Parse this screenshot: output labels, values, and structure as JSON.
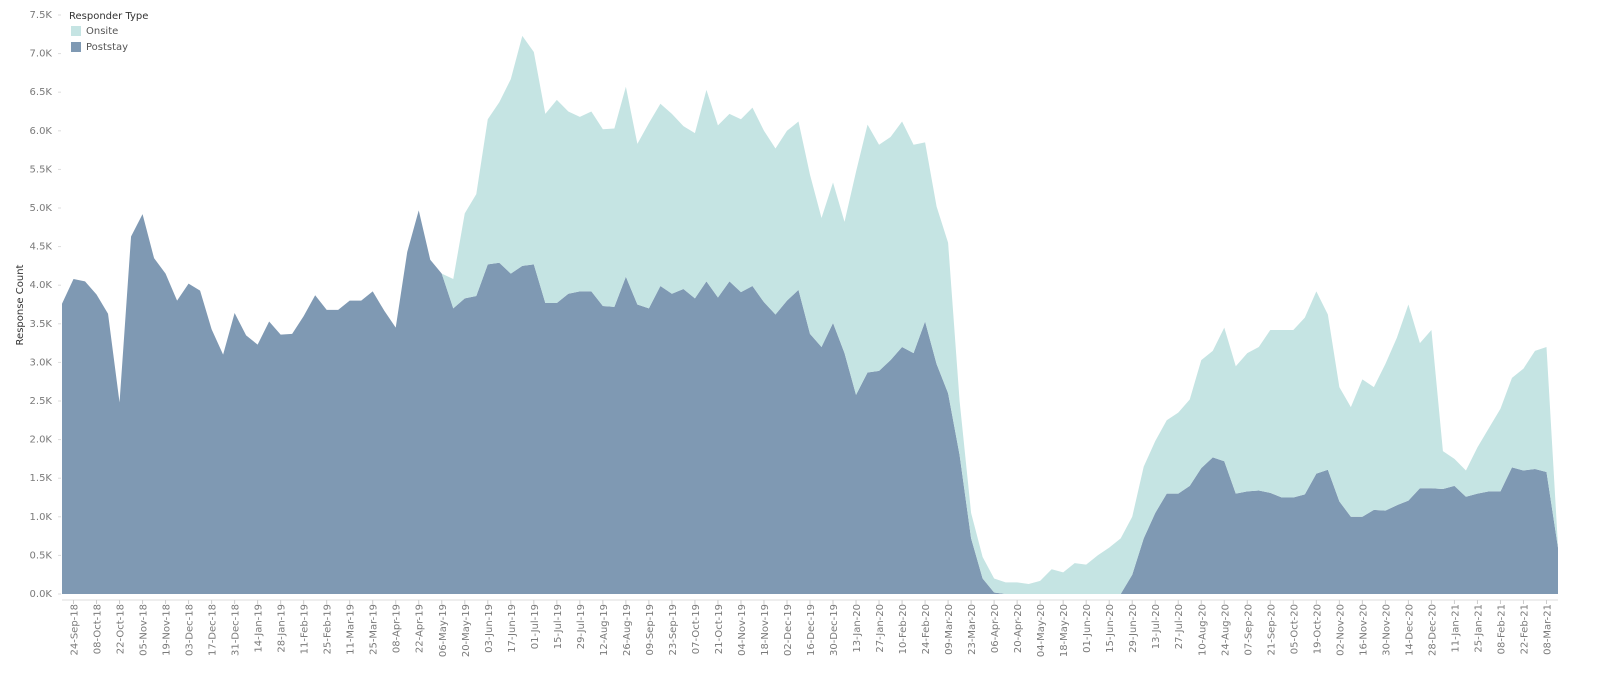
{
  "chart_data": {
    "type": "stacked-area",
    "y_label": "Response Count",
    "legend_title": "Responder Type",
    "legend_position": "top-left",
    "grid": false,
    "ylim": [
      0,
      7500
    ],
    "yticks": [
      {
        "value": 0,
        "label": "0.0K"
      },
      {
        "value": 500,
        "label": "0.5K"
      },
      {
        "value": 1000,
        "label": "1.0K"
      },
      {
        "value": 1500,
        "label": "1.5K"
      },
      {
        "value": 2000,
        "label": "2.0K"
      },
      {
        "value": 2500,
        "label": "2.5K"
      },
      {
        "value": 3000,
        "label": "3.0K"
      },
      {
        "value": 3500,
        "label": "3.5K"
      },
      {
        "value": 4000,
        "label": "4.0K"
      },
      {
        "value": 4500,
        "label": "4.5K"
      },
      {
        "value": 5000,
        "label": "5.0K"
      },
      {
        "value": 5500,
        "label": "5.5K"
      },
      {
        "value": 6000,
        "label": "6.0K"
      },
      {
        "value": 6500,
        "label": "6.5K"
      },
      {
        "value": 7000,
        "label": "7.0K"
      },
      {
        "value": 7500,
        "label": "7.5K"
      }
    ],
    "categories": [
      null,
      "24-Sep-18",
      null,
      "08-Oct-18",
      null,
      "22-Oct-18",
      null,
      "05-Nov-18",
      null,
      "19-Nov-18",
      null,
      "03-Dec-18",
      null,
      "17-Dec-18",
      null,
      "31-Dec-18",
      null,
      "14-Jan-19",
      null,
      "28-Jan-19",
      null,
      "11-Feb-19",
      null,
      "25-Feb-19",
      null,
      "11-Mar-19",
      null,
      "25-Mar-19",
      null,
      "08-Apr-19",
      null,
      "22-Apr-19",
      null,
      "06-May-19",
      null,
      "20-May-19",
      null,
      "03-Jun-19",
      null,
      "17-Jun-19",
      null,
      "01-Jul-19",
      null,
      "15-Jul-19",
      null,
      "29-Jul-19",
      null,
      "12-Aug-19",
      null,
      "26-Aug-19",
      null,
      "09-Sep-19",
      null,
      "23-Sep-19",
      null,
      "07-Oct-19",
      null,
      "21-Oct-19",
      null,
      "04-Nov-19",
      null,
      "18-Nov-19",
      null,
      "02-Dec-19",
      null,
      "16-Dec-19",
      null,
      "30-Dec-19",
      null,
      "13-Jan-20",
      null,
      "27-Jan-20",
      null,
      "10-Feb-20",
      null,
      "24-Feb-20",
      null,
      "09-Mar-20",
      null,
      "23-Mar-20",
      null,
      "06-Apr-20",
      null,
      "20-Apr-20",
      null,
      "04-May-20",
      null,
      "18-May-20",
      null,
      "01-Jun-20",
      null,
      "15-Jun-20",
      null,
      "29-Jun-20",
      null,
      "13-Jul-20",
      null,
      "27-Jul-20",
      null,
      "10-Aug-20",
      null,
      "24-Aug-20",
      null,
      "07-Sep-20",
      null,
      "21-Sep-20",
      null,
      "05-Oct-20",
      null,
      "19-Oct-20",
      null,
      "02-Nov-20",
      null,
      "16-Nov-20",
      null,
      "30-Nov-20",
      null,
      "14-Dec-20",
      null,
      "28-Dec-20",
      null,
      "11-Jan-21",
      null,
      "25-Jan-21",
      null,
      "08-Feb-21",
      null,
      "22-Feb-21",
      null,
      "08-Mar-21",
      null
    ],
    "series": [
      {
        "name": "Poststay",
        "color": "#7f99b3",
        "values": [
          3760,
          4080,
          4050,
          3880,
          3630,
          2480,
          4630,
          4920,
          4350,
          4150,
          3800,
          4020,
          3930,
          3430,
          3100,
          3640,
          3350,
          3230,
          3530,
          3360,
          3370,
          3600,
          3870,
          3680,
          3680,
          3800,
          3800,
          3920,
          3670,
          3450,
          4430,
          4970,
          4330,
          4150,
          3700,
          3830,
          3860,
          4270,
          4290,
          4150,
          4250,
          4270,
          3770,
          3770,
          3890,
          3920,
          3920,
          3730,
          3720,
          4110,
          3750,
          3700,
          3990,
          3890,
          3950,
          3830,
          4050,
          3840,
          4050,
          3910,
          3990,
          3780,
          3620,
          3800,
          3940,
          3370,
          3200,
          3510,
          3120,
          2580,
          2870,
          2890,
          3030,
          3200,
          3120,
          3530,
          2980,
          2600,
          1800,
          720,
          200,
          20,
          0,
          0,
          0,
          0,
          0,
          0,
          0,
          0,
          0,
          0,
          0,
          250,
          720,
          1050,
          1300,
          1300,
          1400,
          1630,
          1770,
          1720,
          1300,
          1330,
          1340,
          1310,
          1250,
          1250,
          1290,
          1560,
          1610,
          1200,
          1000,
          1000,
          1090,
          1080,
          1150,
          1210,
          1370,
          1370,
          1360,
          1400,
          1260,
          1300,
          1330,
          1330,
          1640,
          1600,
          1620,
          1580,
          600
        ]
      },
      {
        "name": "Onsite",
        "color": "#c5e4e3",
        "values": [
          0,
          0,
          0,
          0,
          0,
          0,
          0,
          0,
          0,
          0,
          0,
          0,
          0,
          0,
          0,
          0,
          0,
          0,
          0,
          0,
          0,
          0,
          0,
          0,
          0,
          0,
          0,
          0,
          0,
          0,
          0,
          0,
          0,
          0,
          380,
          1100,
          1320,
          1880,
          2080,
          2520,
          2980,
          2750,
          2450,
          2630,
          2360,
          2260,
          2330,
          2290,
          2310,
          2460,
          2080,
          2400,
          2360,
          2330,
          2110,
          2140,
          2480,
          2230,
          2170,
          2240,
          2310,
          2220,
          2150,
          2200,
          2180,
          2060,
          1670,
          1820,
          1700,
          2890,
          3210,
          2930,
          2890,
          2920,
          2700,
          2320,
          2040,
          1950,
          700,
          330,
          280,
          180,
          150,
          150,
          130,
          170,
          320,
          280,
          400,
          380,
          500,
          600,
          720,
          750,
          930,
          930,
          950,
          1050,
          1120,
          1400,
          1380,
          1730,
          1650,
          1790,
          1860,
          2110,
          2170,
          2170,
          2290,
          2360,
          2010,
          1480,
          1420,
          1780,
          1590,
          1900,
          2170,
          2540,
          1880,
          2050,
          490,
          350,
          340,
          600,
          820,
          1070,
          1160,
          1320,
          1530,
          1620,
          20
        ]
      }
    ]
  }
}
